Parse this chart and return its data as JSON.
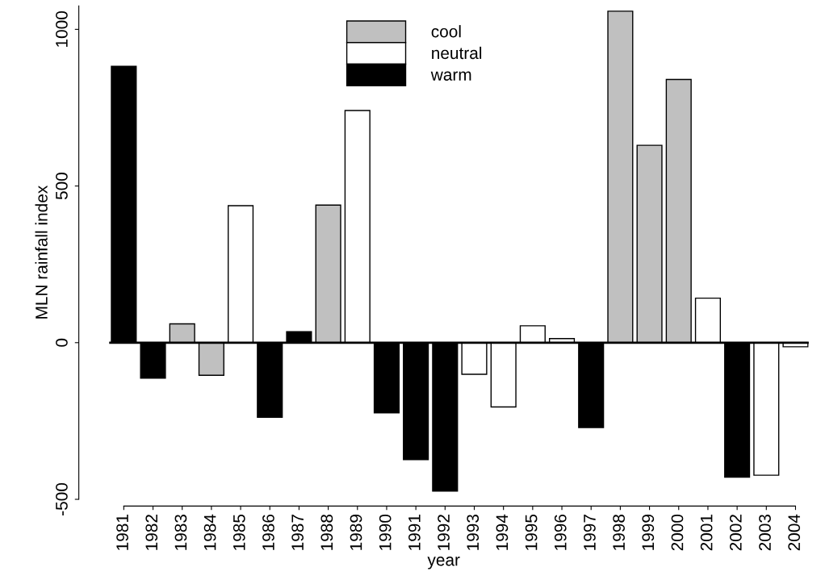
{
  "chart_data": {
    "type": "bar",
    "xlabel": "year",
    "ylabel": "MLN rainfall index",
    "categories": [
      "1981",
      "1982",
      "1983",
      "1984",
      "1985",
      "1986",
      "1987",
      "1988",
      "1989",
      "1990",
      "1991",
      "1992",
      "1993",
      "1994",
      "1995",
      "1996",
      "1997",
      "1998",
      "1999",
      "2000",
      "2001",
      "2002",
      "2003",
      "2004"
    ],
    "series": [
      {
        "name": "cool",
        "color": "#c0c0c0",
        "values": [
          null,
          null,
          60,
          -104,
          null,
          null,
          null,
          439,
          null,
          null,
          null,
          null,
          null,
          null,
          null,
          null,
          null,
          1058,
          630,
          840,
          null,
          null,
          null,
          null
        ]
      },
      {
        "name": "neutral",
        "color": "#ffffff",
        "values": [
          null,
          null,
          null,
          null,
          437,
          null,
          null,
          null,
          741,
          null,
          null,
          null,
          -101,
          -205,
          54,
          13,
          null,
          null,
          null,
          null,
          142,
          null,
          -423,
          -13
        ]
      },
      {
        "name": "warm",
        "color": "#000000",
        "values": [
          882,
          -113,
          null,
          null,
          null,
          -238,
          35,
          null,
          null,
          -224,
          -373,
          -474,
          null,
          null,
          null,
          null,
          -271,
          null,
          null,
          null,
          null,
          -429,
          null,
          null
        ]
      }
    ],
    "ylim": [
      -500,
      1075
    ],
    "yticks": [
      -500,
      0,
      500,
      1000
    ],
    "ref_lines": [
      {
        "axis": "y",
        "value": 0,
        "color": "#000000"
      }
    ],
    "grid": false,
    "legend": "top"
  }
}
